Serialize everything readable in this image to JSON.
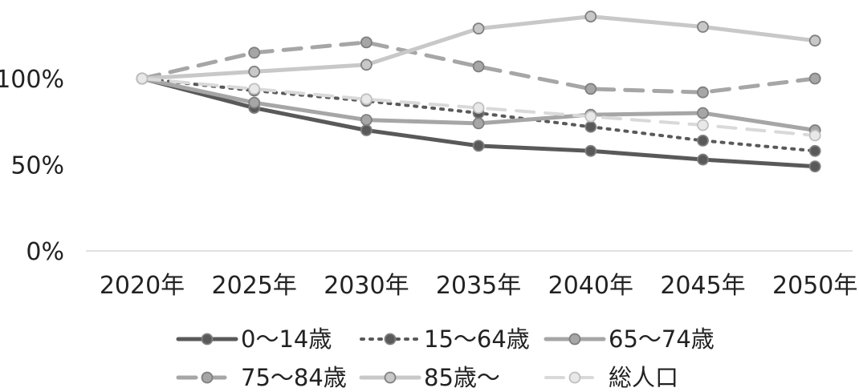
{
  "chart_data": {
    "type": "line",
    "title": "",
    "xlabel": "",
    "ylabel": "",
    "categories": [
      "2020年",
      "2025年",
      "2030年",
      "2035年",
      "2040年",
      "2045年",
      "2050年"
    ],
    "y_ticks": [
      "0%",
      "50%",
      "100%"
    ],
    "ylim": [
      0,
      1.45
    ],
    "grid": false,
    "legend_position": "bottom",
    "series": [
      {
        "name": "0～14歳",
        "values": [
          1.0,
          0.83,
          0.7,
          0.61,
          0.58,
          0.53,
          0.49
        ],
        "color": "#595959",
        "dash": "solid",
        "width": 5
      },
      {
        "name": "15～64歳",
        "values": [
          1.0,
          0.93,
          0.87,
          0.8,
          0.72,
          0.64,
          0.58
        ],
        "color": "#595959",
        "dash": "dotted",
        "width": 4
      },
      {
        "name": "65～74歳",
        "values": [
          1.0,
          0.86,
          0.76,
          0.74,
          0.79,
          0.8,
          0.7
        ],
        "color": "#a6a6a6",
        "dash": "solid",
        "width": 5
      },
      {
        "name": "75～84歳",
        "values": [
          1.0,
          1.15,
          1.21,
          1.07,
          0.94,
          0.92,
          1.0
        ],
        "color": "#a6a6a6",
        "dash": "dashed",
        "width": 5
      },
      {
        "name": "85歳～",
        "values": [
          1.0,
          1.04,
          1.08,
          1.29,
          1.36,
          1.3,
          1.22
        ],
        "color": "#c8c8c8",
        "dash": "solid",
        "width": 5
      },
      {
        "name": "総人口",
        "values": [
          1.0,
          0.94,
          0.88,
          0.83,
          0.78,
          0.73,
          0.67
        ],
        "color": "#d9d9d9",
        "dash": "dashed",
        "width": 4
      }
    ]
  }
}
